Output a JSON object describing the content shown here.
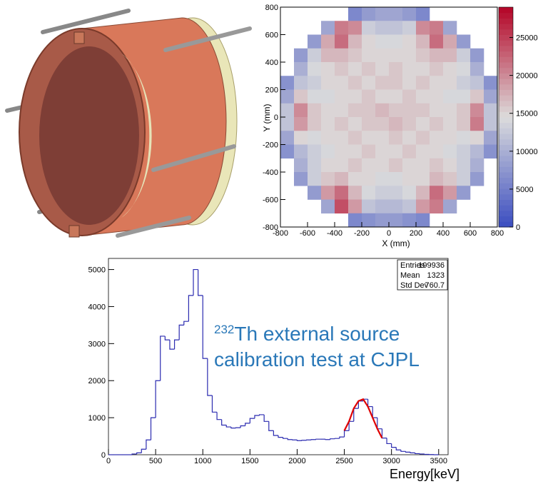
{
  "chart_data": [
    {
      "type": "heatmap",
      "xlabel": "X (mm)",
      "ylabel": "Y (mm)",
      "x": [
        -750,
        -650,
        -550,
        -450,
        -350,
        -250,
        -150,
        -50,
        50,
        150,
        250,
        350,
        450,
        550,
        650,
        750
      ],
      "y": [
        750,
        650,
        550,
        450,
        350,
        250,
        150,
        50,
        -50,
        -150,
        -250,
        -350,
        -450,
        -550,
        -650,
        -750
      ],
      "values": [
        [
          null,
          null,
          null,
          null,
          null,
          6000,
          8000,
          9000,
          9000,
          8000,
          6000,
          null,
          null,
          null,
          null,
          null
        ],
        [
          null,
          null,
          null,
          9000,
          21000,
          20000,
          13000,
          12000,
          12000,
          13000,
          20000,
          21000,
          9000,
          null,
          null,
          null
        ],
        [
          null,
          null,
          8000,
          18000,
          22000,
          17000,
          15000,
          14000,
          14000,
          15000,
          17000,
          22000,
          18000,
          8000,
          null,
          null
        ],
        [
          null,
          8000,
          13000,
          17000,
          17000,
          16000,
          15000,
          15000,
          15000,
          15000,
          16000,
          17000,
          17000,
          13000,
          8000,
          null
        ],
        [
          null,
          10000,
          14000,
          15000,
          16000,
          15000,
          16000,
          15000,
          16000,
          15000,
          15000,
          16000,
          15000,
          14000,
          10000,
          null
        ],
        [
          7000,
          12000,
          13000,
          15000,
          15000,
          16000,
          15000,
          16000,
          16000,
          15000,
          16000,
          15000,
          15000,
          13000,
          12000,
          7000
        ],
        [
          9000,
          16000,
          14000,
          14000,
          15000,
          15000,
          16000,
          15000,
          15000,
          16000,
          15000,
          15000,
          14000,
          14000,
          16000,
          9000
        ],
        [
          12000,
          20000,
          16000,
          15000,
          15000,
          16000,
          16000,
          17000,
          16000,
          16000,
          16000,
          15000,
          15000,
          16000,
          20000,
          12000
        ],
        [
          12000,
          19000,
          16000,
          15000,
          16000,
          15000,
          16000,
          16000,
          17000,
          16000,
          15000,
          16000,
          15000,
          16000,
          21000,
          12000
        ],
        [
          9000,
          15000,
          14000,
          15000,
          15000,
          16000,
          15000,
          15000,
          16000,
          15000,
          16000,
          15000,
          15000,
          14000,
          15000,
          9000
        ],
        [
          7000,
          11000,
          13000,
          14000,
          15000,
          15000,
          16000,
          15000,
          15000,
          16000,
          15000,
          15000,
          14000,
          13000,
          11000,
          7000
        ],
        [
          null,
          10000,
          13000,
          15000,
          15000,
          16000,
          15000,
          15000,
          16000,
          15000,
          15000,
          16000,
          15000,
          13000,
          10000,
          null
        ],
        [
          null,
          8000,
          13000,
          16000,
          17000,
          15000,
          15000,
          14000,
          14000,
          15000,
          15000,
          17000,
          16000,
          13000,
          8000,
          null
        ],
        [
          null,
          null,
          8000,
          19000,
          22000,
          17000,
          14000,
          13000,
          13000,
          14000,
          17000,
          22000,
          19000,
          8000,
          null,
          null
        ],
        [
          null,
          null,
          null,
          9000,
          24000,
          19000,
          12000,
          11000,
          11000,
          12000,
          19000,
          21000,
          9000,
          null,
          null,
          null
        ],
        [
          null,
          null,
          null,
          null,
          null,
          6000,
          7000,
          8000,
          8000,
          7000,
          6000,
          null,
          null,
          null,
          null,
          null
        ]
      ],
      "xlim": [
        -800,
        800
      ],
      "ylim": [
        -800,
        800
      ],
      "xticks": [
        -800,
        -600,
        -400,
        -200,
        0,
        200,
        400,
        600,
        800
      ],
      "yticks": [
        -800,
        -600,
        -400,
        -200,
        0,
        200,
        400,
        600,
        800
      ],
      "zlim": [
        0,
        29000
      ],
      "zticks": [
        0,
        5000,
        10000,
        15000,
        20000,
        25000
      ],
      "colorscale": [
        "#3a4cc0",
        "#dcdcdc",
        "#b40426"
      ]
    },
    {
      "type": "histogram",
      "xlabel": "Energy[keV]",
      "color": "#2b2bb0",
      "bins": [
        0,
        50,
        100,
        150,
        200,
        250,
        300,
        350,
        400,
        450,
        500,
        550,
        600,
        650,
        700,
        750,
        800,
        850,
        900,
        950,
        1000,
        1050,
        1100,
        1150,
        1200,
        1250,
        1300,
        1350,
        1400,
        1450,
        1500,
        1550,
        1600,
        1650,
        1700,
        1750,
        1800,
        1850,
        1900,
        1950,
        2000,
        2050,
        2100,
        2150,
        2200,
        2250,
        2300,
        2350,
        2400,
        2450,
        2500,
        2550,
        2600,
        2650,
        2700,
        2750,
        2800,
        2850,
        2900,
        2950,
        3000,
        3050,
        3100,
        3150,
        3200,
        3250,
        3300,
        3350,
        3400,
        3450,
        3500
      ],
      "values": [
        0,
        0,
        0,
        0,
        0,
        20,
        50,
        150,
        400,
        1000,
        2000,
        3200,
        3100,
        2850,
        3100,
        3500,
        3600,
        4300,
        5000,
        4300,
        2600,
        1600,
        1150,
        950,
        800,
        750,
        720,
        730,
        780,
        850,
        980,
        1060,
        1080,
        900,
        650,
        520,
        470,
        440,
        410,
        400,
        380,
        390,
        400,
        410,
        420,
        420,
        410,
        430,
        440,
        480,
        650,
        900,
        1250,
        1450,
        1500,
        1300,
        1000,
        700,
        450,
        300,
        200,
        130,
        90,
        70,
        50,
        30,
        20,
        10,
        5,
        0
      ],
      "fit": {
        "color": "#e00000",
        "x": [
          2500,
          2550,
          2600,
          2650,
          2700,
          2750,
          2800,
          2850,
          2900
        ],
        "values": [
          650,
          900,
          1250,
          1450,
          1500,
          1300,
          1000,
          700,
          450
        ]
      },
      "xlim": [
        0,
        3600
      ],
      "ylim": [
        0,
        5300
      ],
      "xticks": [
        0,
        500,
        1000,
        1500,
        2000,
        2500,
        3000,
        3500
      ],
      "yticks": [
        0,
        1000,
        2000,
        3000,
        4000,
        5000
      ],
      "stats": [
        {
          "label": "Entries",
          "value": 199936
        },
        {
          "label": "Mean",
          "value": 1323
        },
        {
          "label": "Std Dev",
          "value": 760.7
        }
      ],
      "annotation_superscript": "232",
      "annotation": [
        "Th external source",
        "calibration test at CJPL"
      ],
      "annotation_color": "#2a78b8"
    }
  ]
}
